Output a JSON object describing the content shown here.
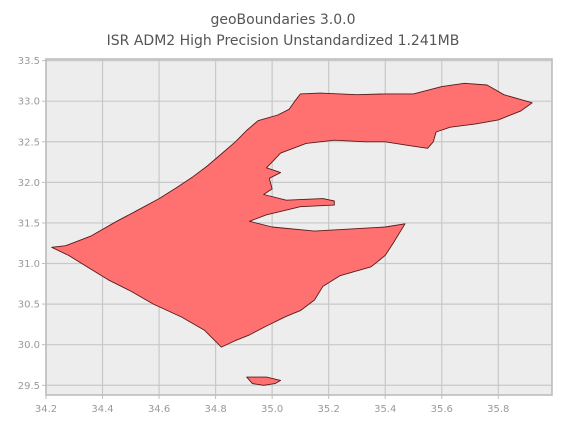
{
  "chart_data": {
    "type": "map",
    "title_lines": [
      "geoBoundaries 3.0.0",
      "ISR ADM2 High Precision Unstandardized 1.241MB"
    ],
    "xlim": [
      34.2,
      35.99
    ],
    "ylim": [
      29.38,
      33.52
    ],
    "x_ticks": [
      34.2,
      34.4,
      34.6,
      34.8,
      35.0,
      35.2,
      35.4,
      35.6,
      35.8
    ],
    "x_tick_labels": [
      "34.2",
      "34.4",
      "34.6",
      "34.8",
      "35.0",
      "35.2",
      "35.4",
      "35.6",
      "35.8"
    ],
    "y_ticks": [
      29.5,
      30.0,
      30.5,
      31.0,
      31.5,
      32.0,
      32.5,
      33.0,
      33.5
    ],
    "y_tick_labels": [
      "29.5",
      "30.0",
      "30.5",
      "31.0",
      "31.5",
      "32.0",
      "32.5",
      "33.0",
      "33.5"
    ],
    "grid": true,
    "fill_color": "#ff7070",
    "edge_color": "#5a1a1a",
    "background_color": "#ededed",
    "grid_color": "#c8c8c8",
    "regions": [
      {
        "name": "outline-main",
        "lonlat": [
          [
            34.27,
            31.22
          ],
          [
            34.36,
            31.34
          ],
          [
            34.45,
            31.52
          ],
          [
            34.52,
            31.65
          ],
          [
            34.6,
            31.8
          ],
          [
            34.66,
            31.93
          ],
          [
            34.72,
            32.07
          ],
          [
            34.77,
            32.2
          ],
          [
            34.82,
            32.35
          ],
          [
            34.87,
            32.5
          ],
          [
            34.91,
            32.64
          ],
          [
            34.95,
            32.76
          ],
          [
            35.02,
            32.83
          ],
          [
            35.06,
            32.9
          ],
          [
            35.08,
            33.0
          ],
          [
            35.1,
            33.09
          ],
          [
            35.17,
            33.1
          ],
          [
            35.3,
            33.08
          ],
          [
            35.4,
            33.09
          ],
          [
            35.5,
            33.09
          ],
          [
            35.6,
            33.18
          ],
          [
            35.68,
            33.22
          ],
          [
            35.76,
            33.2
          ],
          [
            35.82,
            33.08
          ],
          [
            35.92,
            32.98
          ],
          [
            35.88,
            32.88
          ],
          [
            35.8,
            32.77
          ],
          [
            35.72,
            32.72
          ],
          [
            35.63,
            32.68
          ],
          [
            35.58,
            32.62
          ],
          [
            35.57,
            32.5
          ],
          [
            35.55,
            32.42
          ],
          [
            35.49,
            32.45
          ],
          [
            35.4,
            32.5
          ],
          [
            35.33,
            32.5
          ],
          [
            35.22,
            32.52
          ],
          [
            35.12,
            32.48
          ],
          [
            35.03,
            32.36
          ],
          [
            35.0,
            32.25
          ],
          [
            34.98,
            32.18
          ],
          [
            35.03,
            32.12
          ],
          [
            34.99,
            32.05
          ],
          [
            35.0,
            31.92
          ],
          [
            34.97,
            31.85
          ],
          [
            35.05,
            31.78
          ],
          [
            35.18,
            31.8
          ],
          [
            35.22,
            31.77
          ],
          [
            35.22,
            31.72
          ],
          [
            35.1,
            31.7
          ],
          [
            34.98,
            31.6
          ],
          [
            34.92,
            31.52
          ],
          [
            35.0,
            31.45
          ],
          [
            35.15,
            31.4
          ],
          [
            35.4,
            31.45
          ],
          [
            35.47,
            31.49
          ],
          [
            35.43,
            31.26
          ],
          [
            35.4,
            31.1
          ],
          [
            35.35,
            30.96
          ],
          [
            35.24,
            30.85
          ],
          [
            35.18,
            30.72
          ],
          [
            35.15,
            30.55
          ],
          [
            35.1,
            30.42
          ],
          [
            35.05,
            30.35
          ],
          [
            34.98,
            30.23
          ],
          [
            34.92,
            30.12
          ],
          [
            34.87,
            30.05
          ],
          [
            34.82,
            29.97
          ],
          [
            34.76,
            30.18
          ],
          [
            34.68,
            30.34
          ],
          [
            34.58,
            30.5
          ],
          [
            34.5,
            30.66
          ],
          [
            34.42,
            30.8
          ],
          [
            34.35,
            30.95
          ],
          [
            34.28,
            31.1
          ],
          [
            34.22,
            31.2
          ]
        ]
      },
      {
        "name": "eilat-enclave",
        "lonlat": [
          [
            34.91,
            29.6
          ],
          [
            34.93,
            29.52
          ],
          [
            34.97,
            29.5
          ],
          [
            35.01,
            29.52
          ],
          [
            35.03,
            29.56
          ],
          [
            34.98,
            29.6
          ]
        ]
      }
    ]
  }
}
